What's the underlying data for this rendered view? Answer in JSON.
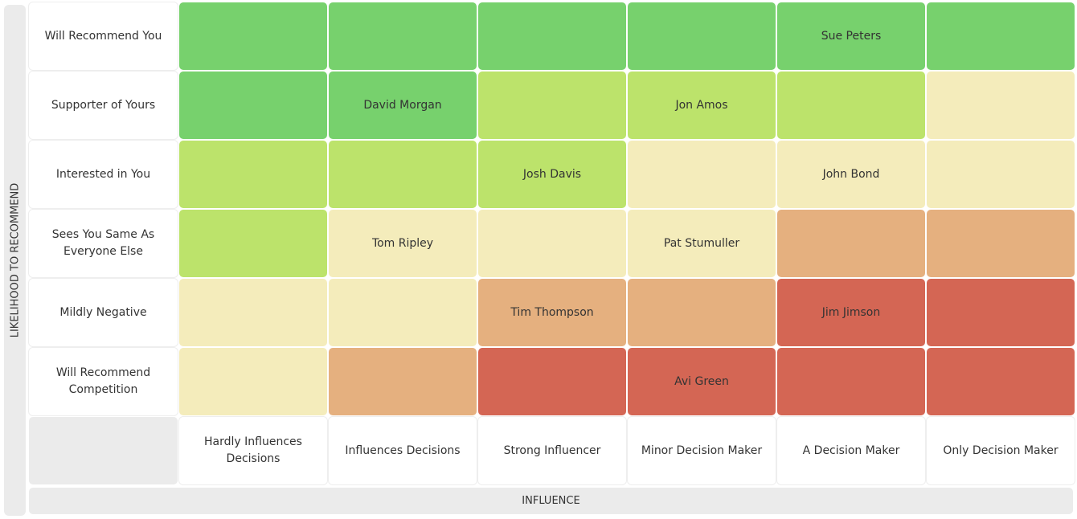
{
  "chart_data": {
    "type": "heatmap",
    "ylabel": "LIKELIHOOD TO RECOMMEND",
    "xlabel": "INFLUENCE",
    "rows": [
      "Will Recommend You",
      "Supporter of Yours",
      "Interested in You",
      "Sees You Same As Everyone Else",
      "Mildly Negative",
      "Will Recommend Competition"
    ],
    "columns": [
      "Hardly Influences Decisions",
      "Influences Decisions",
      "Strong Influencer",
      "Minor Decision Maker",
      "A Decision Maker",
      "Only Decision Maker"
    ],
    "levels": [
      [
        0,
        0,
        0,
        0,
        0,
        0
      ],
      [
        0,
        0,
        1,
        1,
        1,
        2
      ],
      [
        1,
        1,
        1,
        2,
        2,
        2
      ],
      [
        1,
        2,
        2,
        2,
        3,
        3
      ],
      [
        2,
        2,
        3,
        3,
        4,
        4
      ],
      [
        2,
        3,
        4,
        4,
        4,
        4
      ]
    ],
    "names": [
      [
        "",
        "",
        "",
        "",
        "Sue Peters",
        ""
      ],
      [
        "",
        "David Morgan",
        "",
        "Jon Amos",
        "",
        ""
      ],
      [
        "",
        "",
        "Josh Davis",
        "",
        "John Bond",
        ""
      ],
      [
        "",
        "Tom Ripley",
        "",
        "Pat Stumuller",
        "",
        ""
      ],
      [
        "",
        "",
        "Tim Thompson",
        "",
        "Jim Jimson",
        ""
      ],
      [
        "",
        "",
        "",
        "Avi Green",
        "",
        ""
      ]
    ],
    "level_colors": [
      "#77d16d",
      "#bce36b",
      "#f4ecbb",
      "#e5b07f",
      "#d46654"
    ]
  }
}
